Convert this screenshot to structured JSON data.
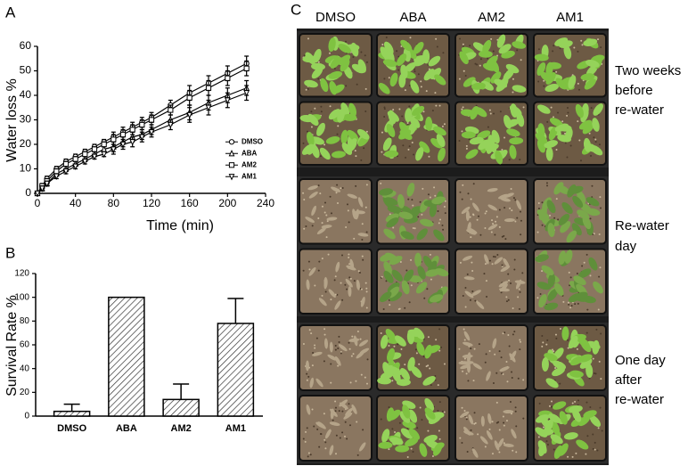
{
  "chart_data": [
    {
      "type": "line",
      "panel_label": "A",
      "x_label": "Time (min)",
      "y_label": "Water loss %",
      "x": [
        0,
        5,
        10,
        20,
        30,
        40,
        50,
        60,
        70,
        80,
        90,
        100,
        110,
        120,
        140,
        160,
        180,
        200,
        220
      ],
      "series": [
        {
          "name": "DMSO",
          "color": "#000000",
          "marker": "circle",
          "values": [
            0,
            3,
            6,
            10,
            13,
            15,
            17,
            19,
            21,
            23,
            25,
            27,
            29,
            31,
            36,
            41,
            45,
            49,
            53
          ],
          "errors": [
            0,
            1,
            1,
            1,
            1,
            1,
            1,
            1,
            1,
            2,
            2,
            2,
            2,
            2,
            2,
            3,
            3,
            3,
            3
          ]
        },
        {
          "name": "ABA",
          "color": "#000000",
          "marker": "triangle",
          "values": [
            0,
            2,
            4,
            8,
            10,
            12,
            14,
            16,
            18,
            19,
            21,
            23,
            24,
            26,
            30,
            33,
            37,
            40,
            43
          ],
          "errors": [
            0,
            1,
            1,
            1,
            1,
            1,
            1,
            1,
            1,
            2,
            2,
            2,
            2,
            2,
            2,
            3,
            3,
            3,
            3
          ]
        },
        {
          "name": "AM2",
          "color": "#000000",
          "marker": "square",
          "values": [
            0,
            3,
            5,
            9,
            12,
            14,
            16,
            18,
            20,
            22,
            24,
            26,
            28,
            30,
            34,
            39,
            43,
            47,
            51
          ],
          "errors": [
            0,
            1,
            1,
            1,
            1,
            1,
            1,
            1,
            1,
            2,
            2,
            2,
            2,
            2,
            2,
            3,
            3,
            3,
            3
          ]
        },
        {
          "name": "AM1",
          "color": "#000000",
          "marker": "triangle-down",
          "values": [
            0,
            2,
            4,
            7,
            9,
            11,
            13,
            15,
            16,
            18,
            20,
            21,
            23,
            25,
            28,
            32,
            35,
            38,
            41
          ],
          "errors": [
            0,
            1,
            1,
            1,
            1,
            1,
            1,
            1,
            1,
            2,
            2,
            2,
            2,
            2,
            2,
            3,
            3,
            3,
            3
          ]
        }
      ],
      "xlim": [
        0,
        240
      ],
      "xticks": [
        0,
        40,
        80,
        120,
        160,
        200,
        240
      ],
      "ylim": [
        0,
        60
      ],
      "yticks": [
        0,
        10,
        20,
        30,
        40,
        50,
        60
      ],
      "legend": "right"
    },
    {
      "type": "bar",
      "panel_label": "B",
      "y_label": "Survival Rate %",
      "categories": [
        "DMSO",
        "ABA",
        "AM2",
        "AM1"
      ],
      "values": [
        4,
        100,
        14,
        78
      ],
      "errors": [
        6,
        0,
        13,
        21
      ],
      "ylim": [
        0,
        120
      ],
      "yticks": [
        0,
        20,
        40,
        60,
        80,
        100,
        120
      ]
    }
  ],
  "panel_c": {
    "label": "C",
    "columns": [
      "DMSO",
      "ABA",
      "AM2",
      "AM1"
    ],
    "rows": [
      [
        "Two weeks",
        "before",
        "re-water"
      ],
      [
        "Re-water",
        "day"
      ],
      [
        "One day",
        "after",
        "re-water"
      ]
    ]
  }
}
